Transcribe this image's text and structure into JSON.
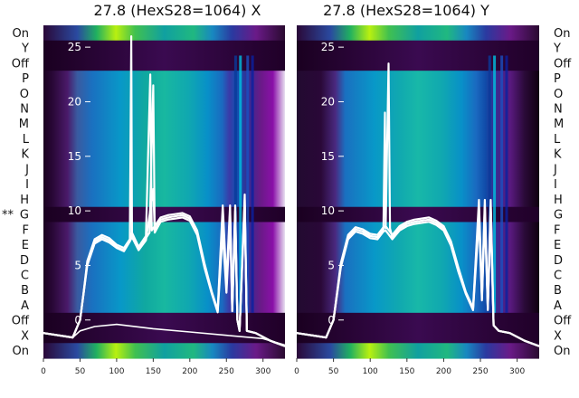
{
  "chart_data": [
    {
      "type": "heatmap",
      "title": "27.8 (HexS28=1064) X",
      "row_labels": [
        "On",
        "Y",
        "Off",
        "P",
        "O",
        "N",
        "M",
        "L",
        "K",
        "J",
        "I",
        "H",
        "G",
        "F",
        "E",
        "D",
        "C",
        "B",
        "A",
        "Off",
        "X",
        "On"
      ],
      "row_marker": {
        "row": "G",
        "text": "**"
      },
      "x_ticks": [
        0,
        50,
        100,
        150,
        200,
        250,
        300
      ],
      "y_ticks": [
        0,
        5,
        10,
        15,
        20,
        25
      ],
      "xlim": [
        0,
        330
      ],
      "ylim": [
        -3.5,
        27
      ],
      "grid": false,
      "series": [
        {
          "values": [
            [
              0,
              -1.2
            ],
            [
              40,
              -1.6
            ],
            [
              50,
              0
            ],
            [
              55,
              2.5
            ],
            [
              60,
              5.2
            ],
            [
              70,
              7.2
            ],
            [
              80,
              7.6
            ],
            [
              90,
              7.3
            ],
            [
              100,
              6.7
            ],
            [
              110,
              6.4
            ],
            [
              118,
              7.3
            ],
            [
              120,
              26
            ],
            [
              121,
              7.8
            ],
            [
              130,
              6.5
            ],
            [
              140,
              7.5
            ],
            [
              145,
              8
            ],
            [
              150,
              21.5
            ],
            [
              152,
              8.2
            ],
            [
              160,
              9.2
            ],
            [
              170,
              9.4
            ],
            [
              180,
              9.5
            ],
            [
              190,
              9.6
            ],
            [
              200,
              9.3
            ],
            [
              210,
              8
            ],
            [
              220,
              5
            ],
            [
              230,
              2.5
            ],
            [
              238,
              0.8
            ],
            [
              245,
              9.5
            ],
            [
              250,
              3
            ],
            [
              255,
              10
            ],
            [
              258,
              1
            ],
            [
              262,
              10
            ],
            [
              265,
              0
            ],
            [
              268,
              -1
            ],
            [
              275,
              11.5
            ],
            [
              278,
              -1
            ],
            [
              290,
              -1.2
            ],
            [
              310,
              -1.9
            ],
            [
              330,
              -2.4
            ]
          ]
        },
        {
          "values": [
            [
              0,
              -1.2
            ],
            [
              40,
              -1.6
            ],
            [
              50,
              0
            ],
            [
              55,
              2.5
            ],
            [
              60,
              5
            ],
            [
              70,
              7
            ],
            [
              80,
              7.4
            ],
            [
              90,
              7.1
            ],
            [
              100,
              6.6
            ],
            [
              110,
              6.3
            ],
            [
              118,
              7.2
            ],
            [
              121,
              7.6
            ],
            [
              130,
              6.4
            ],
            [
              140,
              7.3
            ],
            [
              150,
              12
            ],
            [
              152,
              8
            ],
            [
              160,
              9
            ],
            [
              170,
              9.2
            ],
            [
              180,
              9.3
            ],
            [
              190,
              9.4
            ],
            [
              200,
              9.1
            ],
            [
              210,
              7.8
            ],
            [
              220,
              4.8
            ],
            [
              230,
              2.4
            ],
            [
              238,
              0.7
            ],
            [
              245,
              8
            ],
            [
              250,
              2.5
            ],
            [
              255,
              9
            ],
            [
              258,
              0.8
            ],
            [
              262,
              9
            ],
            [
              265,
              0
            ],
            [
              268,
              -1
            ],
            [
              275,
              10.5
            ],
            [
              278,
              -1
            ],
            [
              290,
              -1.2
            ],
            [
              310,
              -1.9
            ],
            [
              330,
              -2.4
            ]
          ]
        },
        {
          "values": [
            [
              0,
              -1.2
            ],
            [
              40,
              -1.6
            ],
            [
              50,
              0
            ],
            [
              55,
              2.6
            ],
            [
              60,
              5.4
            ],
            [
              70,
              7.4
            ],
            [
              80,
              7.8
            ],
            [
              90,
              7.5
            ],
            [
              100,
              6.9
            ],
            [
              110,
              6.6
            ],
            [
              118,
              7.4
            ],
            [
              121,
              8
            ],
            [
              130,
              6.7
            ],
            [
              140,
              7.7
            ],
            [
              146,
              22.5
            ],
            [
              148,
              8.2
            ],
            [
              160,
              9.4
            ],
            [
              170,
              9.6
            ],
            [
              180,
              9.7
            ],
            [
              190,
              9.8
            ],
            [
              200,
              9.5
            ],
            [
              210,
              8.2
            ],
            [
              220,
              5.2
            ],
            [
              230,
              2.6
            ],
            [
              238,
              0.9
            ],
            [
              245,
              10.5
            ],
            [
              250,
              3.5
            ],
            [
              255,
              10.5
            ],
            [
              258,
              1
            ],
            [
              262,
              10.5
            ],
            [
              265,
              0
            ],
            [
              268,
              -1
            ],
            [
              275,
              11
            ],
            [
              278,
              -1
            ],
            [
              290,
              -1.2
            ],
            [
              310,
              -1.9
            ],
            [
              330,
              -2.4
            ]
          ]
        },
        {
          "values": [
            [
              0,
              -1.2
            ],
            [
              40,
              -1.6
            ],
            [
              50,
              -1
            ],
            [
              70,
              -0.6
            ],
            [
              100,
              -0.4
            ],
            [
              150,
              -0.8
            ],
            [
              200,
              -1.1
            ],
            [
              250,
              -1.4
            ],
            [
              300,
              -1.7
            ],
            [
              330,
              -2.3
            ]
          ]
        }
      ]
    },
    {
      "type": "heatmap",
      "title": "27.8 (HexS28=1064) Y",
      "row_labels": [
        "On",
        "Y",
        "Off",
        "P",
        "O",
        "N",
        "M",
        "L",
        "K",
        "J",
        "I",
        "H",
        "G",
        "F",
        "E",
        "D",
        "C",
        "B",
        "A",
        "Off",
        "X",
        "On"
      ],
      "x_ticks": [
        0,
        50,
        100,
        150,
        200,
        250,
        300
      ],
      "y_ticks": [
        0,
        5,
        10,
        15,
        20,
        25
      ],
      "xlim": [
        0,
        330
      ],
      "ylim": [
        -3.5,
        27
      ],
      "grid": false,
      "series": [
        {
          "values": [
            [
              0,
              -1.2
            ],
            [
              40,
              -1.6
            ],
            [
              50,
              0
            ],
            [
              55,
              2.5
            ],
            [
              60,
              5
            ],
            [
              70,
              7.6
            ],
            [
              80,
              8.3
            ],
            [
              90,
              8.1
            ],
            [
              100,
              7.7
            ],
            [
              110,
              7.6
            ],
            [
              118,
              8.3
            ],
            [
              120,
              19
            ],
            [
              121,
              8.4
            ],
            [
              125,
              23.5
            ],
            [
              127,
              8.4
            ],
            [
              130,
              7.6
            ],
            [
              140,
              8.4
            ],
            [
              150,
              8.8
            ],
            [
              160,
              9
            ],
            [
              170,
              9.1
            ],
            [
              180,
              9.2
            ],
            [
              190,
              8.9
            ],
            [
              200,
              8.4
            ],
            [
              210,
              7
            ],
            [
              220,
              4.6
            ],
            [
              230,
              2.5
            ],
            [
              240,
              1
            ],
            [
              248,
              10.2
            ],
            [
              252,
              2
            ],
            [
              256,
              10.5
            ],
            [
              260,
              1
            ],
            [
              264,
              10.5
            ],
            [
              268,
              -0.5
            ],
            [
              275,
              -1
            ],
            [
              290,
              -1.2
            ],
            [
              310,
              -1.9
            ],
            [
              330,
              -2.4
            ]
          ]
        },
        {
          "values": [
            [
              0,
              -1.2
            ],
            [
              40,
              -1.6
            ],
            [
              50,
              0
            ],
            [
              55,
              2.4
            ],
            [
              60,
              4.8
            ],
            [
              70,
              7.4
            ],
            [
              80,
              8.1
            ],
            [
              90,
              7.9
            ],
            [
              100,
              7.5
            ],
            [
              110,
              7.4
            ],
            [
              118,
              8.1
            ],
            [
              121,
              8.2
            ],
            [
              130,
              7.4
            ],
            [
              140,
              8.2
            ],
            [
              150,
              8.6
            ],
            [
              160,
              8.8
            ],
            [
              170,
              8.9
            ],
            [
              180,
              9
            ],
            [
              190,
              8.7
            ],
            [
              200,
              8.2
            ],
            [
              210,
              6.8
            ],
            [
              220,
              4.4
            ],
            [
              230,
              2.4
            ],
            [
              240,
              0.9
            ],
            [
              248,
              9.2
            ],
            [
              252,
              1.8
            ],
            [
              256,
              9.5
            ],
            [
              260,
              0.9
            ],
            [
              264,
              9.5
            ],
            [
              268,
              -0.5
            ],
            [
              275,
              -1
            ],
            [
              290,
              -1.2
            ],
            [
              310,
              -1.9
            ],
            [
              330,
              -2.4
            ]
          ]
        },
        {
          "values": [
            [
              0,
              -1.2
            ],
            [
              40,
              -1.6
            ],
            [
              50,
              0
            ],
            [
              55,
              2.6
            ],
            [
              60,
              5.2
            ],
            [
              70,
              7.8
            ],
            [
              80,
              8.5
            ],
            [
              90,
              8.3
            ],
            [
              100,
              7.9
            ],
            [
              110,
              7.8
            ],
            [
              118,
              8.5
            ],
            [
              121,
              8.6
            ],
            [
              130,
              7.8
            ],
            [
              140,
              8.6
            ],
            [
              150,
              9
            ],
            [
              160,
              9.2
            ],
            [
              170,
              9.3
            ],
            [
              180,
              9.4
            ],
            [
              190,
              9.1
            ],
            [
              200,
              8.6
            ],
            [
              210,
              7.2
            ],
            [
              220,
              4.8
            ],
            [
              230,
              2.6
            ],
            [
              240,
              1.1
            ],
            [
              248,
              11
            ],
            [
              252,
              2.2
            ],
            [
              256,
              11
            ],
            [
              260,
              1.1
            ],
            [
              264,
              11
            ],
            [
              268,
              -0.5
            ],
            [
              275,
              -1
            ],
            [
              290,
              -1.2
            ],
            [
              310,
              -1.9
            ],
            [
              330,
              -2.4
            ]
          ]
        }
      ]
    }
  ]
}
